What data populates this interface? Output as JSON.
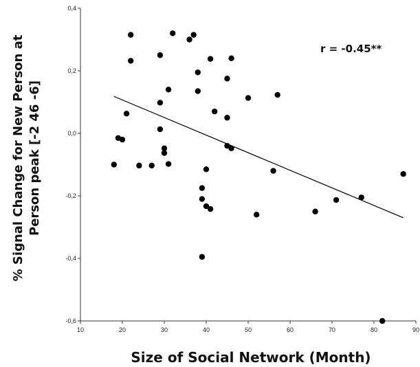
{
  "chart_data": {
    "type": "scatter",
    "xlabel": "Size of Social Network (Month)",
    "ylabel_lines": [
      "% Signal Change for New Person at",
      "Person peak [-2 46 -6]"
    ],
    "xlim": [
      10,
      90
    ],
    "ylim": [
      -0.6,
      0.4
    ],
    "x_ticks": [
      10,
      20,
      30,
      40,
      50,
      60,
      70,
      80,
      90
    ],
    "x_tick_labels": [
      "10",
      "20",
      "30",
      "40",
      "50",
      "60",
      "70",
      "80",
      "90"
    ],
    "y_ticks": [
      -0.6,
      -0.4,
      -0.2,
      0.0,
      0.2,
      0.4
    ],
    "y_tick_labels": [
      "-0,6",
      "-0,4",
      "-0,2",
      "0,0",
      "0,2",
      "0,4"
    ],
    "annotation": "r =  -0.45**",
    "grid": false,
    "points": [
      {
        "x": 18,
        "y": -0.1
      },
      {
        "x": 19,
        "y": -0.015
      },
      {
        "x": 20,
        "y": -0.02
      },
      {
        "x": 21,
        "y": 0.063
      },
      {
        "x": 22,
        "y": 0.315
      },
      {
        "x": 22,
        "y": 0.232
      },
      {
        "x": 24,
        "y": -0.103
      },
      {
        "x": 27,
        "y": -0.103
      },
      {
        "x": 29,
        "y": 0.25
      },
      {
        "x": 29,
        "y": 0.098
      },
      {
        "x": 29,
        "y": 0.013
      },
      {
        "x": 30,
        "y": -0.048
      },
      {
        "x": 30,
        "y": -0.063
      },
      {
        "x": 31,
        "y": 0.14
      },
      {
        "x": 31,
        "y": -0.098
      },
      {
        "x": 32,
        "y": 0.32
      },
      {
        "x": 36,
        "y": 0.3
      },
      {
        "x": 37,
        "y": 0.315
      },
      {
        "x": 38,
        "y": 0.195
      },
      {
        "x": 38,
        "y": 0.135
      },
      {
        "x": 39,
        "y": -0.175
      },
      {
        "x": 39,
        "y": -0.21
      },
      {
        "x": 39,
        "y": -0.395
      },
      {
        "x": 40,
        "y": -0.115
      },
      {
        "x": 40,
        "y": -0.233
      },
      {
        "x": 41,
        "y": 0.238
      },
      {
        "x": 41,
        "y": -0.242
      },
      {
        "x": 42,
        "y": 0.07
      },
      {
        "x": 45,
        "y": 0.175
      },
      {
        "x": 45,
        "y": 0.05
      },
      {
        "x": 45,
        "y": -0.04
      },
      {
        "x": 46,
        "y": 0.24
      },
      {
        "x": 46,
        "y": -0.048
      },
      {
        "x": 50,
        "y": 0.113
      },
      {
        "x": 52,
        "y": -0.26
      },
      {
        "x": 56,
        "y": -0.12
      },
      {
        "x": 57,
        "y": 0.123
      },
      {
        "x": 66,
        "y": -0.25
      },
      {
        "x": 71,
        "y": -0.213
      },
      {
        "x": 77,
        "y": -0.205
      },
      {
        "x": 82,
        "y": -0.6
      },
      {
        "x": 87,
        "y": -0.13
      }
    ],
    "trendline": {
      "x1": 18,
      "y1": 0.118,
      "x2": 87,
      "y2": -0.27
    }
  }
}
